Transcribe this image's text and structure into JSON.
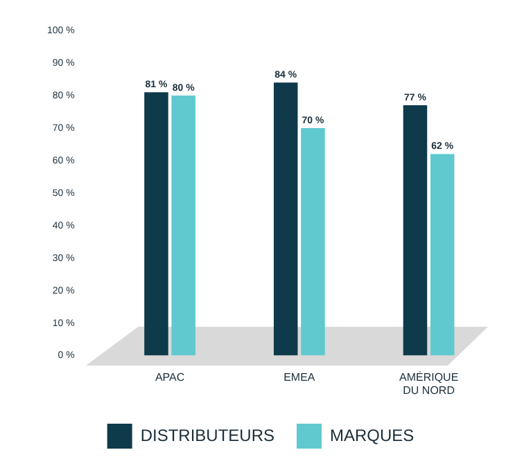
{
  "chart_data": {
    "type": "bar",
    "categories": [
      "APAC",
      "EMEA",
      "AMÉRIQUE DU NORD"
    ],
    "series": [
      {
        "name": "DISTRIBUTEURS",
        "color": "#0e3a4b",
        "values": [
          81,
          84,
          77
        ],
        "value_labels": [
          "81 %",
          "84 %",
          "77 %"
        ]
      },
      {
        "name": "MARQUES",
        "color": "#5fc9cf",
        "values": [
          80,
          70,
          62
        ],
        "value_labels": [
          "80 %",
          "70 %",
          "62 %"
        ]
      }
    ],
    "ylim": [
      0,
      100
    ],
    "yticks": [
      {
        "value": 0,
        "label": "0 %"
      },
      {
        "value": 10,
        "label": "10 %"
      },
      {
        "value": 20,
        "label": "20 %"
      },
      {
        "value": 30,
        "label": "30 %"
      },
      {
        "value": 40,
        "label": "40 %"
      },
      {
        "value": 50,
        "label": "50 %"
      },
      {
        "value": 60,
        "label": "60 %"
      },
      {
        "value": 70,
        "label": "70 %"
      },
      {
        "value": 80,
        "label": "80 %"
      },
      {
        "value": 90,
        "label": "90 %"
      },
      {
        "value": 100,
        "label": "100 %"
      }
    ],
    "grid": false,
    "legend": "bottom"
  }
}
